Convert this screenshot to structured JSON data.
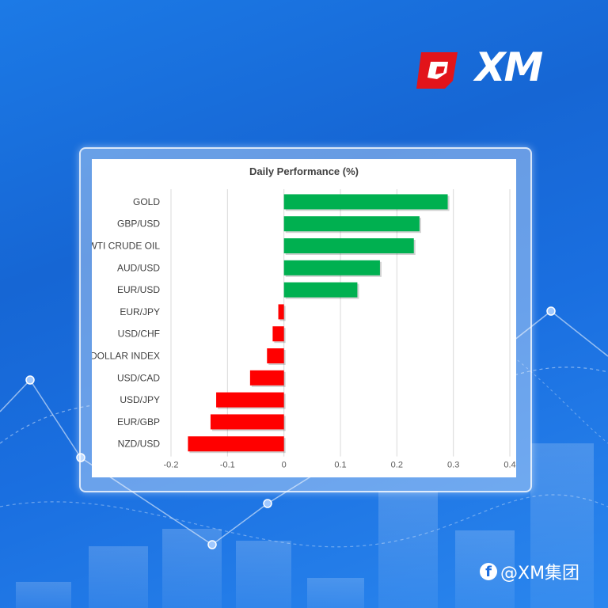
{
  "brand": {
    "logo_text": "XM",
    "social_handle": "@XM集团",
    "social_icon": "facebook-icon"
  },
  "colors": {
    "positive": "#00b050",
    "negative": "#ff0000",
    "background": "#1a6fe0"
  },
  "chart_data": {
    "type": "bar",
    "orientation": "horizontal",
    "title": "Daily Performance (%)",
    "xlabel": "",
    "ylabel": "",
    "xlim": [
      -0.2,
      0.4
    ],
    "xticks": [
      "-0.2",
      "-0.1",
      "0",
      "0.1",
      "0.2",
      "0.3",
      "0.4"
    ],
    "grid": true,
    "categories": [
      "GOLD",
      "GBP/USD",
      "WTI CRUDE OIL",
      "AUD/USD",
      "EUR/USD",
      "EUR/JPY",
      "USD/CHF",
      "DOLLAR INDEX",
      "USD/CAD",
      "USD/JPY",
      "EUR/GBP",
      "NZD/USD"
    ],
    "values": [
      0.29,
      0.24,
      0.23,
      0.17,
      0.13,
      -0.01,
      -0.02,
      -0.03,
      -0.06,
      -0.12,
      -0.13,
      -0.17
    ]
  }
}
